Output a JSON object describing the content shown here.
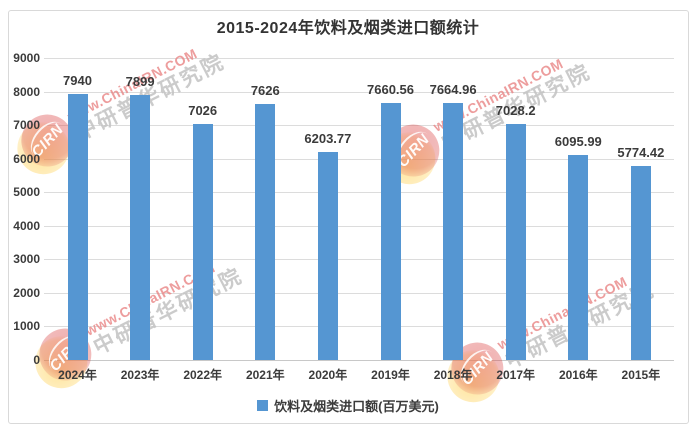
{
  "title": "2015-2024年饮料及烟类进口额统计",
  "chart_data": {
    "type": "bar",
    "title": "2015-2024年饮料及烟类进口额统计",
    "categories": [
      "2024年",
      "2023年",
      "2022年",
      "2021年",
      "2020年",
      "2019年",
      "2018年",
      "2017年",
      "2016年",
      "2015年"
    ],
    "series": [
      {
        "name": "饮料及烟类进口额(百万美元)",
        "values": [
          7940,
          7899,
          7026,
          7626,
          6203.77,
          7660.56,
          7664.96,
          7028.2,
          6095.99,
          5774.42
        ],
        "data_labels": [
          "7940",
          "7899",
          "7026",
          "7626",
          "6203.77",
          "7660.56",
          "7664.96",
          "7028.2",
          "6095.99",
          "5774.42"
        ]
      }
    ],
    "xlabel": "",
    "ylabel": "",
    "ylim": [
      0,
      9000
    ],
    "yticks": [
      0,
      1000,
      2000,
      3000,
      4000,
      5000,
      6000,
      7000,
      8000,
      9000
    ],
    "grid": true,
    "legend_position": "bottom",
    "bar_color": "#5596d2"
  },
  "legend": {
    "label": "饮料及烟类进口额(百万美元)",
    "swatch_color": "#5596d2"
  },
  "watermark": {
    "logo_text": "CIRN",
    "line1": "www.ChinaIRN.COM",
    "line2": "中研普华研究院",
    "colors": {
      "line1_pink": "#e98484",
      "line2_gray": "#c4c4c4",
      "logo_red": "#d63e3e",
      "logo_yellow": "#ffce48"
    }
  }
}
